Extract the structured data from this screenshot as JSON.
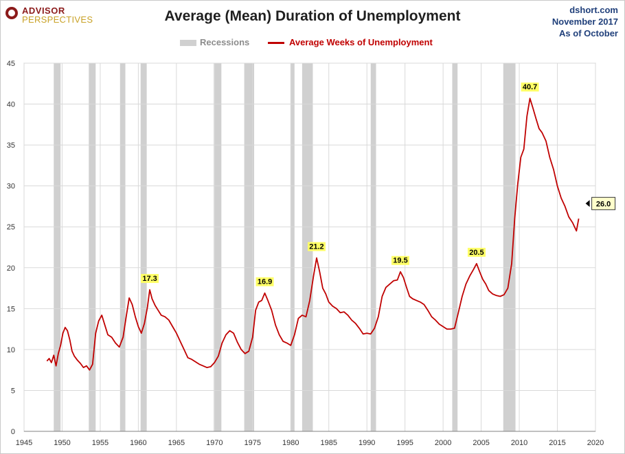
{
  "header": {
    "logo_line1": "ADVISOR",
    "logo_line2": "PERSPECTIVES",
    "source_line1": "dshort.com",
    "source_line2": "November 2017",
    "source_line3": "As of October"
  },
  "colors": {
    "series": "#c00000",
    "recession": "#d0d0d0",
    "grid": "#d9d9d9",
    "highlight": "#ffff66",
    "source_text": "#1f3f7a"
  },
  "chart_data": {
    "type": "line",
    "title": "Average (Mean) Duration of Unemployment",
    "legend": [
      "Recessions",
      "Average Weeks of Unemployment"
    ],
    "legend_position": "top-center",
    "xlim": [
      1945,
      2020
    ],
    "ylim": [
      0,
      45
    ],
    "xticks": [
      1945,
      1950,
      1955,
      1960,
      1965,
      1970,
      1975,
      1980,
      1985,
      1990,
      1995,
      2000,
      2005,
      2010,
      2015,
      2020
    ],
    "yticks": [
      0,
      5,
      10,
      15,
      20,
      25,
      30,
      35,
      40,
      45
    ],
    "grid": true,
    "recessions": [
      [
        1948.9,
        1949.8
      ],
      [
        1953.5,
        1954.4
      ],
      [
        1957.6,
        1958.3
      ],
      [
        1960.3,
        1961.1
      ],
      [
        1969.9,
        1970.9
      ],
      [
        1973.9,
        1975.2
      ],
      [
        1980.0,
        1980.5
      ],
      [
        1981.5,
        1982.9
      ],
      [
        1990.5,
        1991.2
      ],
      [
        2001.2,
        2001.9
      ],
      [
        2007.9,
        2009.5
      ]
    ],
    "series": [
      {
        "name": "Average Weeks of Unemployment",
        "x": [
          1948.0,
          1948.3,
          1948.6,
          1948.9,
          1949.2,
          1949.5,
          1949.8,
          1950.1,
          1950.4,
          1950.7,
          1951.0,
          1951.3,
          1951.6,
          1952.0,
          1952.4,
          1952.8,
          1953.2,
          1953.6,
          1954.0,
          1954.4,
          1954.8,
          1955.2,
          1955.6,
          1956.0,
          1956.5,
          1957.0,
          1957.5,
          1958.0,
          1958.4,
          1958.8,
          1959.2,
          1959.6,
          1960.0,
          1960.4,
          1960.8,
          1961.2,
          1961.5,
          1961.8,
          1962.2,
          1962.6,
          1963.0,
          1963.5,
          1964.0,
          1964.5,
          1965.0,
          1965.5,
          1966.0,
          1966.5,
          1967.0,
          1967.5,
          1968.0,
          1968.5,
          1969.0,
          1969.5,
          1970.0,
          1970.5,
          1971.0,
          1971.5,
          1972.0,
          1972.5,
          1973.0,
          1973.5,
          1974.0,
          1974.5,
          1975.0,
          1975.4,
          1975.8,
          1976.2,
          1976.6,
          1977.0,
          1977.5,
          1978.0,
          1978.5,
          1979.0,
          1979.5,
          1980.0,
          1980.5,
          1981.0,
          1981.5,
          1982.0,
          1982.5,
          1983.0,
          1983.4,
          1983.8,
          1984.2,
          1984.6,
          1985.0,
          1985.5,
          1986.0,
          1986.5,
          1987.0,
          1987.5,
          1988.0,
          1988.5,
          1989.0,
          1989.5,
          1990.0,
          1990.5,
          1991.0,
          1991.5,
          1992.0,
          1992.5,
          1993.0,
          1993.5,
          1994.0,
          1994.4,
          1994.8,
          1995.2,
          1995.6,
          1996.0,
          1996.5,
          1997.0,
          1997.5,
          1998.0,
          1998.5,
          1999.0,
          1999.5,
          2000.0,
          2000.5,
          2001.0,
          2001.5,
          2002.0,
          2002.5,
          2003.0,
          2003.5,
          2004.0,
          2004.4,
          2004.8,
          2005.2,
          2005.6,
          2006.0,
          2006.5,
          2007.0,
          2007.5,
          2008.0,
          2008.5,
          2009.0,
          2009.4,
          2009.8,
          2010.2,
          2010.6,
          2011.0,
          2011.4,
          2011.8,
          2012.2,
          2012.6,
          2013.0,
          2013.5,
          2014.0,
          2014.5,
          2015.0,
          2015.5,
          2016.0,
          2016.5,
          2017.0,
          2017.5,
          2017.8
        ],
        "y": [
          8.6,
          8.9,
          8.4,
          9.3,
          8.0,
          9.5,
          10.5,
          12.0,
          12.7,
          12.3,
          11.2,
          9.8,
          9.2,
          8.7,
          8.3,
          7.8,
          8.0,
          7.5,
          8.2,
          12.0,
          13.5,
          14.2,
          13.0,
          11.8,
          11.5,
          10.8,
          10.3,
          11.5,
          14.0,
          16.3,
          15.5,
          14.0,
          12.8,
          12.0,
          13.2,
          15.2,
          17.3,
          16.2,
          15.4,
          14.8,
          14.2,
          14.0,
          13.6,
          12.8,
          12.0,
          11.0,
          10.0,
          9.0,
          8.8,
          8.5,
          8.2,
          8.0,
          7.8,
          7.9,
          8.4,
          9.2,
          10.8,
          11.8,
          12.3,
          12.0,
          10.9,
          10.0,
          9.5,
          9.8,
          11.5,
          14.8,
          15.8,
          16.0,
          16.9,
          16.0,
          14.8,
          13.0,
          11.8,
          11.0,
          10.8,
          10.5,
          11.8,
          13.8,
          14.2,
          14.0,
          16.0,
          19.0,
          21.2,
          19.5,
          17.5,
          16.8,
          15.8,
          15.3,
          15.0,
          14.5,
          14.6,
          14.2,
          13.6,
          13.2,
          12.6,
          11.9,
          12.0,
          11.9,
          12.6,
          14.0,
          16.5,
          17.6,
          18.0,
          18.4,
          18.5,
          19.5,
          18.8,
          17.6,
          16.5,
          16.2,
          16.0,
          15.8,
          15.5,
          14.8,
          14.0,
          13.6,
          13.1,
          12.8,
          12.5,
          12.5,
          12.6,
          14.5,
          16.5,
          18.0,
          19.0,
          19.8,
          20.5,
          19.5,
          18.6,
          18.0,
          17.2,
          16.8,
          16.6,
          16.5,
          16.7,
          17.5,
          20.5,
          26.0,
          30.2,
          33.5,
          34.5,
          38.5,
          40.7,
          39.5,
          38.2,
          37.0,
          36.5,
          35.5,
          33.5,
          32.0,
          30.0,
          28.5,
          27.5,
          26.2,
          25.5,
          24.5,
          26.0
        ]
      }
    ],
    "annotations": [
      {
        "x": 1961.5,
        "y": 17.3,
        "text": "17.3"
      },
      {
        "x": 1976.6,
        "y": 16.9,
        "text": "16.9"
      },
      {
        "x": 1983.4,
        "y": 21.2,
        "text": "21.2"
      },
      {
        "x": 1994.4,
        "y": 19.5,
        "text": "19.5"
      },
      {
        "x": 2004.4,
        "y": 20.5,
        "text": "20.5"
      },
      {
        "x": 2011.4,
        "y": 40.7,
        "text": "40.7"
      }
    ],
    "last_value_label": {
      "x": 2017.8,
      "y": 26.0,
      "text": "26.0"
    }
  }
}
